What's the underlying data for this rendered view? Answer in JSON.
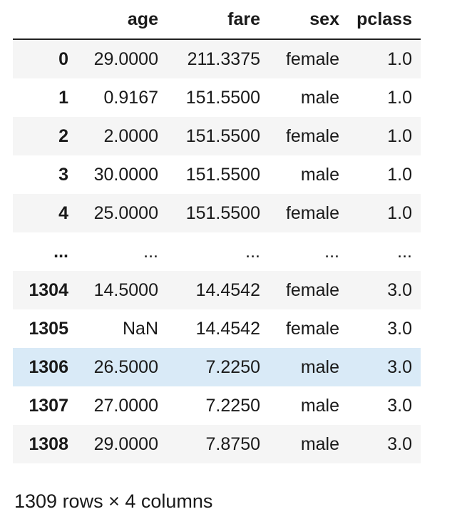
{
  "table": {
    "index_header": "",
    "columns": [
      "age",
      "fare",
      "sex",
      "pclass"
    ],
    "rows": [
      {
        "index": "0",
        "cells": [
          "29.0000",
          "211.3375",
          "female",
          "1.0"
        ],
        "style": "odd"
      },
      {
        "index": "1",
        "cells": [
          "0.9167",
          "151.5500",
          "male",
          "1.0"
        ],
        "style": "even"
      },
      {
        "index": "2",
        "cells": [
          "2.0000",
          "151.5500",
          "female",
          "1.0"
        ],
        "style": "odd"
      },
      {
        "index": "3",
        "cells": [
          "30.0000",
          "151.5500",
          "male",
          "1.0"
        ],
        "style": "even"
      },
      {
        "index": "4",
        "cells": [
          "25.0000",
          "151.5500",
          "female",
          "1.0"
        ],
        "style": "odd"
      },
      {
        "index": "...",
        "cells": [
          "...",
          "...",
          "...",
          "..."
        ],
        "style": "even"
      },
      {
        "index": "1304",
        "cells": [
          "14.5000",
          "14.4542",
          "female",
          "3.0"
        ],
        "style": "odd"
      },
      {
        "index": "1305",
        "cells": [
          "NaN",
          "14.4542",
          "female",
          "3.0"
        ],
        "style": "even"
      },
      {
        "index": "1306",
        "cells": [
          "26.5000",
          "7.2250",
          "male",
          "3.0"
        ],
        "style": "hover"
      },
      {
        "index": "1307",
        "cells": [
          "27.0000",
          "7.2250",
          "male",
          "3.0"
        ],
        "style": "even"
      },
      {
        "index": "1308",
        "cells": [
          "29.0000",
          "7.8750",
          "male",
          "3.0"
        ],
        "style": "odd"
      }
    ]
  },
  "footer": {
    "shape_text": "1309 rows × 4 columns"
  },
  "colors": {
    "row_stripe": "#f5f5f5",
    "row_hover": "#d9eaf7",
    "header_rule": "#222222"
  }
}
